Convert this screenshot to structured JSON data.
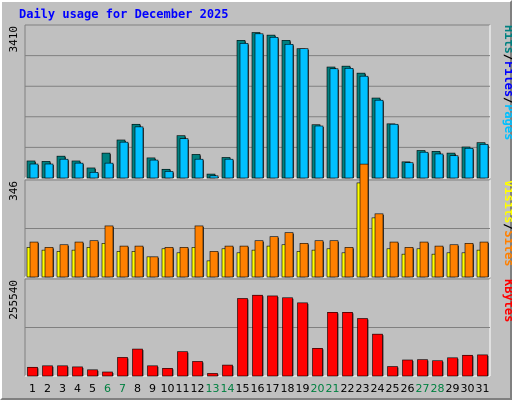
{
  "chart_data": {
    "type": "bar",
    "title": "Daily usage for December 2025",
    "categories": [
      "1",
      "2",
      "3",
      "4",
      "5",
      "6",
      "7",
      "8",
      "9",
      "10",
      "11",
      "12",
      "13",
      "14",
      "15",
      "16",
      "17",
      "18",
      "19",
      "20",
      "21",
      "22",
      "23",
      "24",
      "25",
      "26",
      "27",
      "28",
      "29",
      "30",
      "31"
    ],
    "weekend_days": [
      "6",
      "7",
      "13",
      "14",
      "20",
      "21",
      "27",
      "28"
    ],
    "panels": [
      {
        "id": "hits-files-pages",
        "ymax_label": "3410",
        "ymax": 3410,
        "legend": [
          {
            "name": "Pages",
            "color": "#00c0ff"
          },
          {
            "name": "Files",
            "color": "#0000ff"
          },
          {
            "name": "Hits",
            "color": "#008080"
          }
        ],
        "series": [
          {
            "name": "Hits",
            "color": "#008080",
            "values": [
              390,
              380,
              500,
              390,
              230,
              570,
              870,
              1230,
              460,
              200,
              970,
              540,
              90,
              470,
              3150,
              3330,
              3270,
              3150,
              2960,
              1220,
              2540,
              2560,
              2400,
              1830,
              1240,
              370,
              630,
              610,
              570,
              710,
              810
            ]
          },
          {
            "name": "Pages",
            "color": "#00c0ff",
            "values": [
              320,
              320,
              430,
              340,
              130,
              340,
              820,
              1170,
              410,
              150,
              900,
              430,
              50,
              430,
              3080,
              3300,
              3220,
              3060,
              2960,
              1190,
              2500,
              2510,
              2330,
              1780,
              1230,
              350,
              590,
              550,
              510,
              680,
              770
            ]
          }
        ]
      },
      {
        "id": "visits-sites",
        "ymax_label": "346",
        "ymax": 346,
        "legend": [
          {
            "name": "Sites",
            "color": "#ff8000"
          },
          {
            "name": "Visits",
            "color": "#ffff00"
          }
        ],
        "series": [
          {
            "name": "Visits",
            "color": "#ffff00",
            "values": [
              110,
              100,
              95,
              100,
              110,
              125,
              95,
              95,
              75,
              105,
              90,
              110,
              60,
              105,
              90,
              100,
              115,
              120,
              95,
              100,
              105,
              90,
              350,
              220,
              105,
              85,
              105,
              85,
              90,
              90,
              100
            ]
          },
          {
            "name": "Sites",
            "color": "#ff8000",
            "values": [
              130,
              110,
              120,
              130,
              135,
              190,
              115,
              115,
              75,
              110,
              110,
              190,
              95,
              115,
              115,
              135,
              150,
              165,
              125,
              135,
              135,
              110,
              420,
              235,
              130,
              110,
              130,
              115,
              120,
              125,
              130
            ]
          }
        ]
      },
      {
        "id": "kbytes",
        "ymax_label": "255540",
        "ymax": 255540,
        "legend": [
          {
            "name": "KBytes",
            "color": "#ff0000"
          }
        ],
        "series": [
          {
            "name": "KBytes",
            "color": "#ff0000",
            "values": [
              24000,
              28000,
              28000,
              25000,
              17000,
              11000,
              51000,
              74000,
              28000,
              21000,
              67000,
              40000,
              7000,
              30000,
              213000,
              222000,
              220000,
              215000,
              201000,
              76000,
              175000,
              175000,
              158000,
              115000,
              26000,
              44000,
              45000,
              42000,
              50000,
              57000,
              58000
            ]
          }
        ]
      }
    ]
  }
}
